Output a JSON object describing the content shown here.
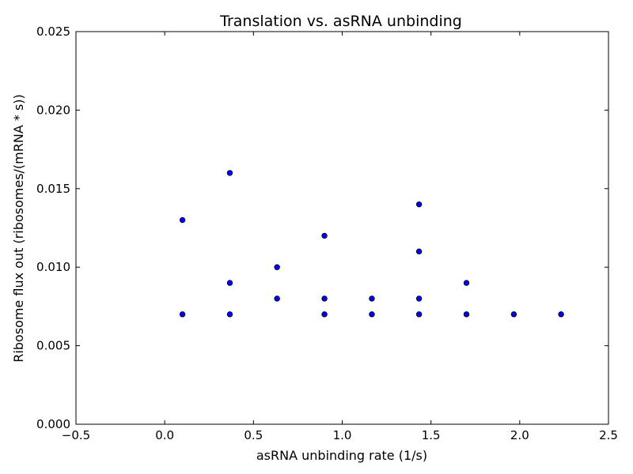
{
  "chart_data": {
    "type": "scatter",
    "title": "Translation vs. asRNA unbinding",
    "xlabel": "asRNA unbinding rate (1/s)",
    "ylabel": "Ribosome flux out (ribosomes/(mRNA * s))",
    "xlim": [
      -0.5,
      2.5
    ],
    "ylim": [
      0.0,
      0.025
    ],
    "xticks": [
      -0.5,
      0.0,
      0.5,
      1.0,
      1.5,
      2.0,
      2.5
    ],
    "xtick_labels": [
      "−0.5",
      "0.0",
      "0.5",
      "1.0",
      "1.5",
      "2.0",
      "2.5"
    ],
    "yticks": [
      0.0,
      0.005,
      0.01,
      0.015,
      0.02,
      0.025
    ],
    "ytick_labels": [
      "0.000",
      "0.005",
      "0.010",
      "0.015",
      "0.020",
      "0.025"
    ],
    "grid": false,
    "marker_color": "#0000ff",
    "marker_edge_color": "#000000",
    "points": [
      {
        "x": 0.1,
        "y": 0.013
      },
      {
        "x": 0.1,
        "y": 0.007
      },
      {
        "x": 0.367,
        "y": 0.016
      },
      {
        "x": 0.367,
        "y": 0.009
      },
      {
        "x": 0.367,
        "y": 0.007
      },
      {
        "x": 0.633,
        "y": 0.01
      },
      {
        "x": 0.633,
        "y": 0.008
      },
      {
        "x": 0.9,
        "y": 0.012
      },
      {
        "x": 0.9,
        "y": 0.008
      },
      {
        "x": 0.9,
        "y": 0.007
      },
      {
        "x": 1.167,
        "y": 0.008
      },
      {
        "x": 1.167,
        "y": 0.007
      },
      {
        "x": 1.433,
        "y": 0.014
      },
      {
        "x": 1.433,
        "y": 0.011
      },
      {
        "x": 1.433,
        "y": 0.008
      },
      {
        "x": 1.433,
        "y": 0.007
      },
      {
        "x": 1.7,
        "y": 0.009
      },
      {
        "x": 1.7,
        "y": 0.007
      },
      {
        "x": 1.967,
        "y": 0.007
      },
      {
        "x": 2.233,
        "y": 0.007
      }
    ]
  }
}
